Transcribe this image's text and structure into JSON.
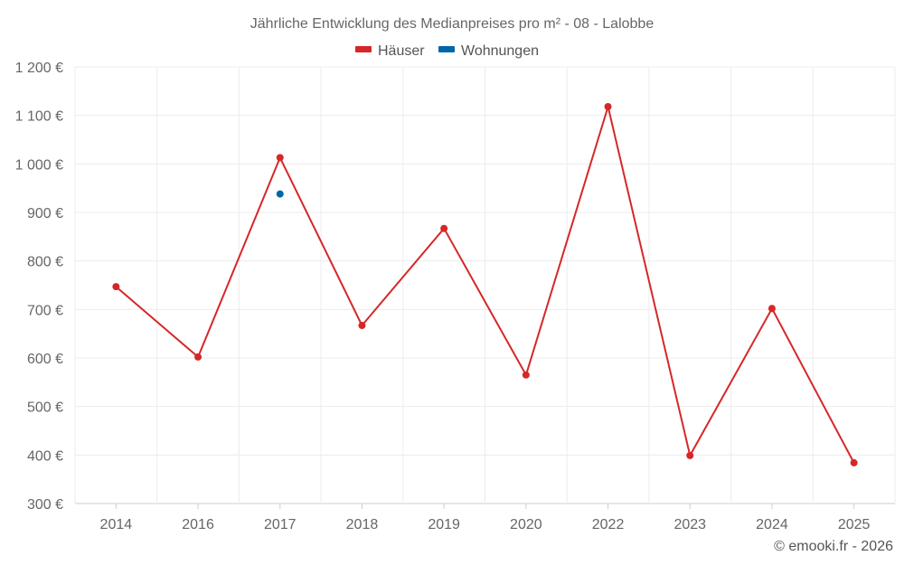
{
  "chart_data": {
    "type": "line",
    "title": "Jährliche Entwicklung des Medianpreises pro m² - 08 - Lalobbe",
    "categories": [
      "2014",
      "2016",
      "2017",
      "2018",
      "2019",
      "2020",
      "2022",
      "2023",
      "2024",
      "2025"
    ],
    "series": [
      {
        "name": "Häuser",
        "color": "#d62728",
        "values": [
          747,
          602,
          1013,
          667,
          867,
          565,
          1118,
          399,
          702,
          384
        ]
      },
      {
        "name": "Wohnungen",
        "color": "#0066a8",
        "values": [
          null,
          null,
          938,
          null,
          null,
          null,
          null,
          null,
          null,
          null
        ]
      }
    ],
    "yticks": [
      "300 €",
      "400 €",
      "500 €",
      "600 €",
      "700 €",
      "800 €",
      "900 €",
      "1 000 €",
      "1 100 €",
      "1 200 €"
    ],
    "ylim": [
      300,
      1200
    ],
    "xlabel": "",
    "ylabel": "",
    "grid": true,
    "legend": "top-center"
  },
  "credit": "© emooki.fr - 2026"
}
